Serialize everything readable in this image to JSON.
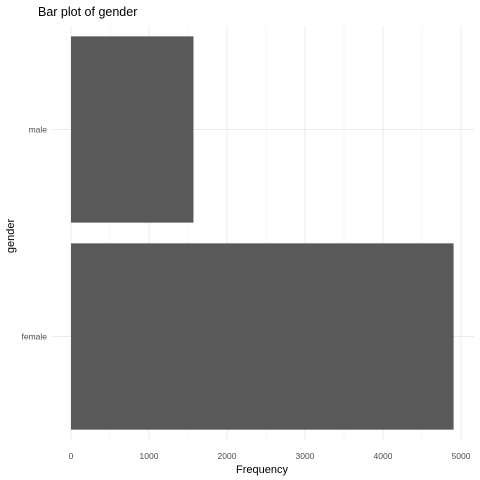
{
  "chart_data": {
    "type": "bar",
    "orientation": "horizontal",
    "title": "Bar plot of gender",
    "xlabel": "Frequency",
    "ylabel": "gender",
    "categories": [
      "female",
      "male"
    ],
    "values": [
      4905,
      1570
    ],
    "xlim": [
      0,
      5150
    ],
    "xticks": [
      0,
      1000,
      2000,
      3000,
      4000,
      5000
    ],
    "grid": true,
    "legend": "none",
    "colors": {
      "bar": "#595959",
      "grid": "#ebebeb",
      "background": "#ffffff"
    }
  }
}
